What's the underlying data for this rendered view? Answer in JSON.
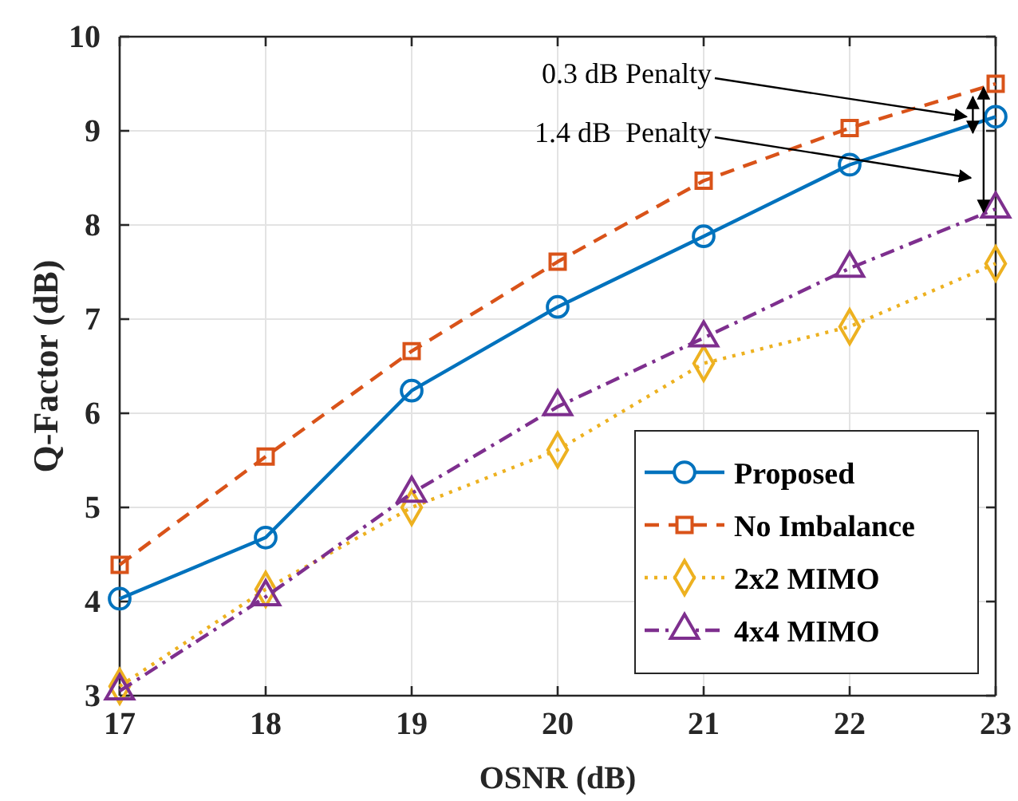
{
  "chart_data": {
    "type": "line",
    "xlabel": "OSNR (dB)",
    "ylabel": "Q-Factor (dB)",
    "x": [
      17,
      18,
      19,
      20,
      21,
      22,
      23
    ],
    "xlim": [
      17,
      23
    ],
    "xticks": [
      17,
      18,
      19,
      20,
      21,
      22,
      23
    ],
    "ylim": [
      3,
      10
    ],
    "yticks": [
      3,
      4,
      5,
      6,
      7,
      8,
      9,
      10
    ],
    "grid": true,
    "legend": "bottom right",
    "series": [
      {
        "name": "Proposed",
        "color": "#0072bd",
        "marker": "circle",
        "line_style": "solid",
        "values": [
          4.03,
          4.68,
          6.24,
          7.13,
          7.88,
          8.64,
          9.15
        ]
      },
      {
        "name": "No Imbalance",
        "color": "#d95319",
        "marker": "square",
        "line_style": "dashed",
        "values": [
          4.39,
          5.54,
          6.66,
          7.61,
          8.47,
          9.03,
          9.5
        ]
      },
      {
        "name": "2x2 MIMO",
        "color": "#edb120",
        "marker": "diamond",
        "line_style": "dotted",
        "values": [
          3.1,
          4.13,
          5.0,
          5.61,
          6.53,
          6.92,
          7.59
        ]
      },
      {
        "name": "4x4 MIMO",
        "color": "#7e2f8e",
        "marker": "triangle",
        "line_style": "dashdot",
        "values": [
          3.05,
          4.05,
          5.15,
          6.07,
          6.8,
          7.54,
          8.17
        ]
      }
    ],
    "annotations": [
      "0.3 dB Penalty",
      "1.4 dB  Penalty"
    ]
  }
}
